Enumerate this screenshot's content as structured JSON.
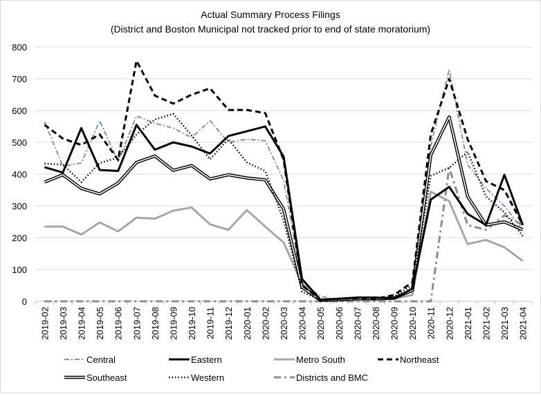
{
  "chart_data": {
    "type": "line",
    "title": "Actual Summary Process Filings",
    "subtitle": "(District and Boston Municipal not tracked prior to end of state moratorium)",
    "xlabel": "",
    "ylabel": "",
    "ylim": [
      0,
      800
    ],
    "yticks": [
      0,
      100,
      200,
      300,
      400,
      500,
      600,
      700,
      800
    ],
    "grid": true,
    "legend_position": "bottom",
    "x": [
      "2019-02",
      "2019-03",
      "2019-04",
      "2019-05",
      "2019-06",
      "2019-07",
      "2019-08",
      "2019-09",
      "2019-10",
      "2019-11",
      "2019-12",
      "2020-01",
      "2020-02",
      "2020-03",
      "2020-04",
      "2020-05",
      "2020-06",
      "2020-07",
      "2020-08",
      "2020-09",
      "2020-10",
      "2020-11",
      "2020-12",
      "2021-01",
      "2021-02",
      "2021-03",
      "2021-04"
    ],
    "series": [
      {
        "name": "Central",
        "style": "central",
        "color": "#7f93b2",
        "values": [
          565,
          425,
          435,
          568,
          440,
          583,
          560,
          545,
          515,
          568,
          500,
          510,
          505,
          380,
          60,
          15,
          5,
          5,
          5,
          10,
          30,
          490,
          730,
          430,
          355,
          300,
          225
        ]
      },
      {
        "name": "Eastern",
        "style": "solid",
        "color": "#000000",
        "values": [
          422,
          405,
          545,
          413,
          410,
          555,
          477,
          500,
          487,
          465,
          520,
          535,
          550,
          455,
          70,
          5,
          8,
          12,
          12,
          8,
          40,
          320,
          360,
          275,
          240,
          398,
          240
        ]
      },
      {
        "name": "Metro South",
        "style": "solid-gray",
        "color": "#a6a6a6",
        "values": [
          235,
          235,
          210,
          248,
          220,
          263,
          260,
          285,
          295,
          242,
          225,
          287,
          235,
          185,
          55,
          2,
          5,
          5,
          5,
          8,
          20,
          345,
          315,
          180,
          193,
          170,
          127
        ]
      },
      {
        "name": "Northeast",
        "style": "dash",
        "color": "#000000",
        "values": [
          555,
          512,
          492,
          525,
          445,
          757,
          647,
          622,
          650,
          670,
          602,
          602,
          592,
          445,
          50,
          5,
          8,
          10,
          8,
          20,
          60,
          525,
          700,
          510,
          378,
          350,
          240
        ]
      },
      {
        "name": "Southeast",
        "style": "double",
        "color": "#000000",
        "values": [
          375,
          398,
          355,
          338,
          372,
          437,
          457,
          412,
          427,
          385,
          398,
          388,
          382,
          290,
          45,
          3,
          5,
          8,
          8,
          10,
          35,
          460,
          580,
          330,
          240,
          250,
          225
        ]
      },
      {
        "name": "Western",
        "style": "dot",
        "color": "#000000",
        "values": [
          433,
          430,
          375,
          435,
          452,
          525,
          572,
          590,
          522,
          447,
          510,
          437,
          410,
          255,
          30,
          5,
          5,
          10,
          8,
          15,
          50,
          395,
          420,
          470,
          330,
          280,
          205
        ]
      },
      {
        "name": "Districts and BMC",
        "style": "dashdot",
        "color": "#8c8c8c",
        "values": [
          0,
          0,
          0,
          0,
          0,
          0,
          0,
          0,
          0,
          0,
          0,
          0,
          0,
          0,
          0,
          0,
          0,
          0,
          0,
          0,
          0,
          0,
          420,
          240,
          225,
          270,
          240
        ]
      }
    ]
  }
}
